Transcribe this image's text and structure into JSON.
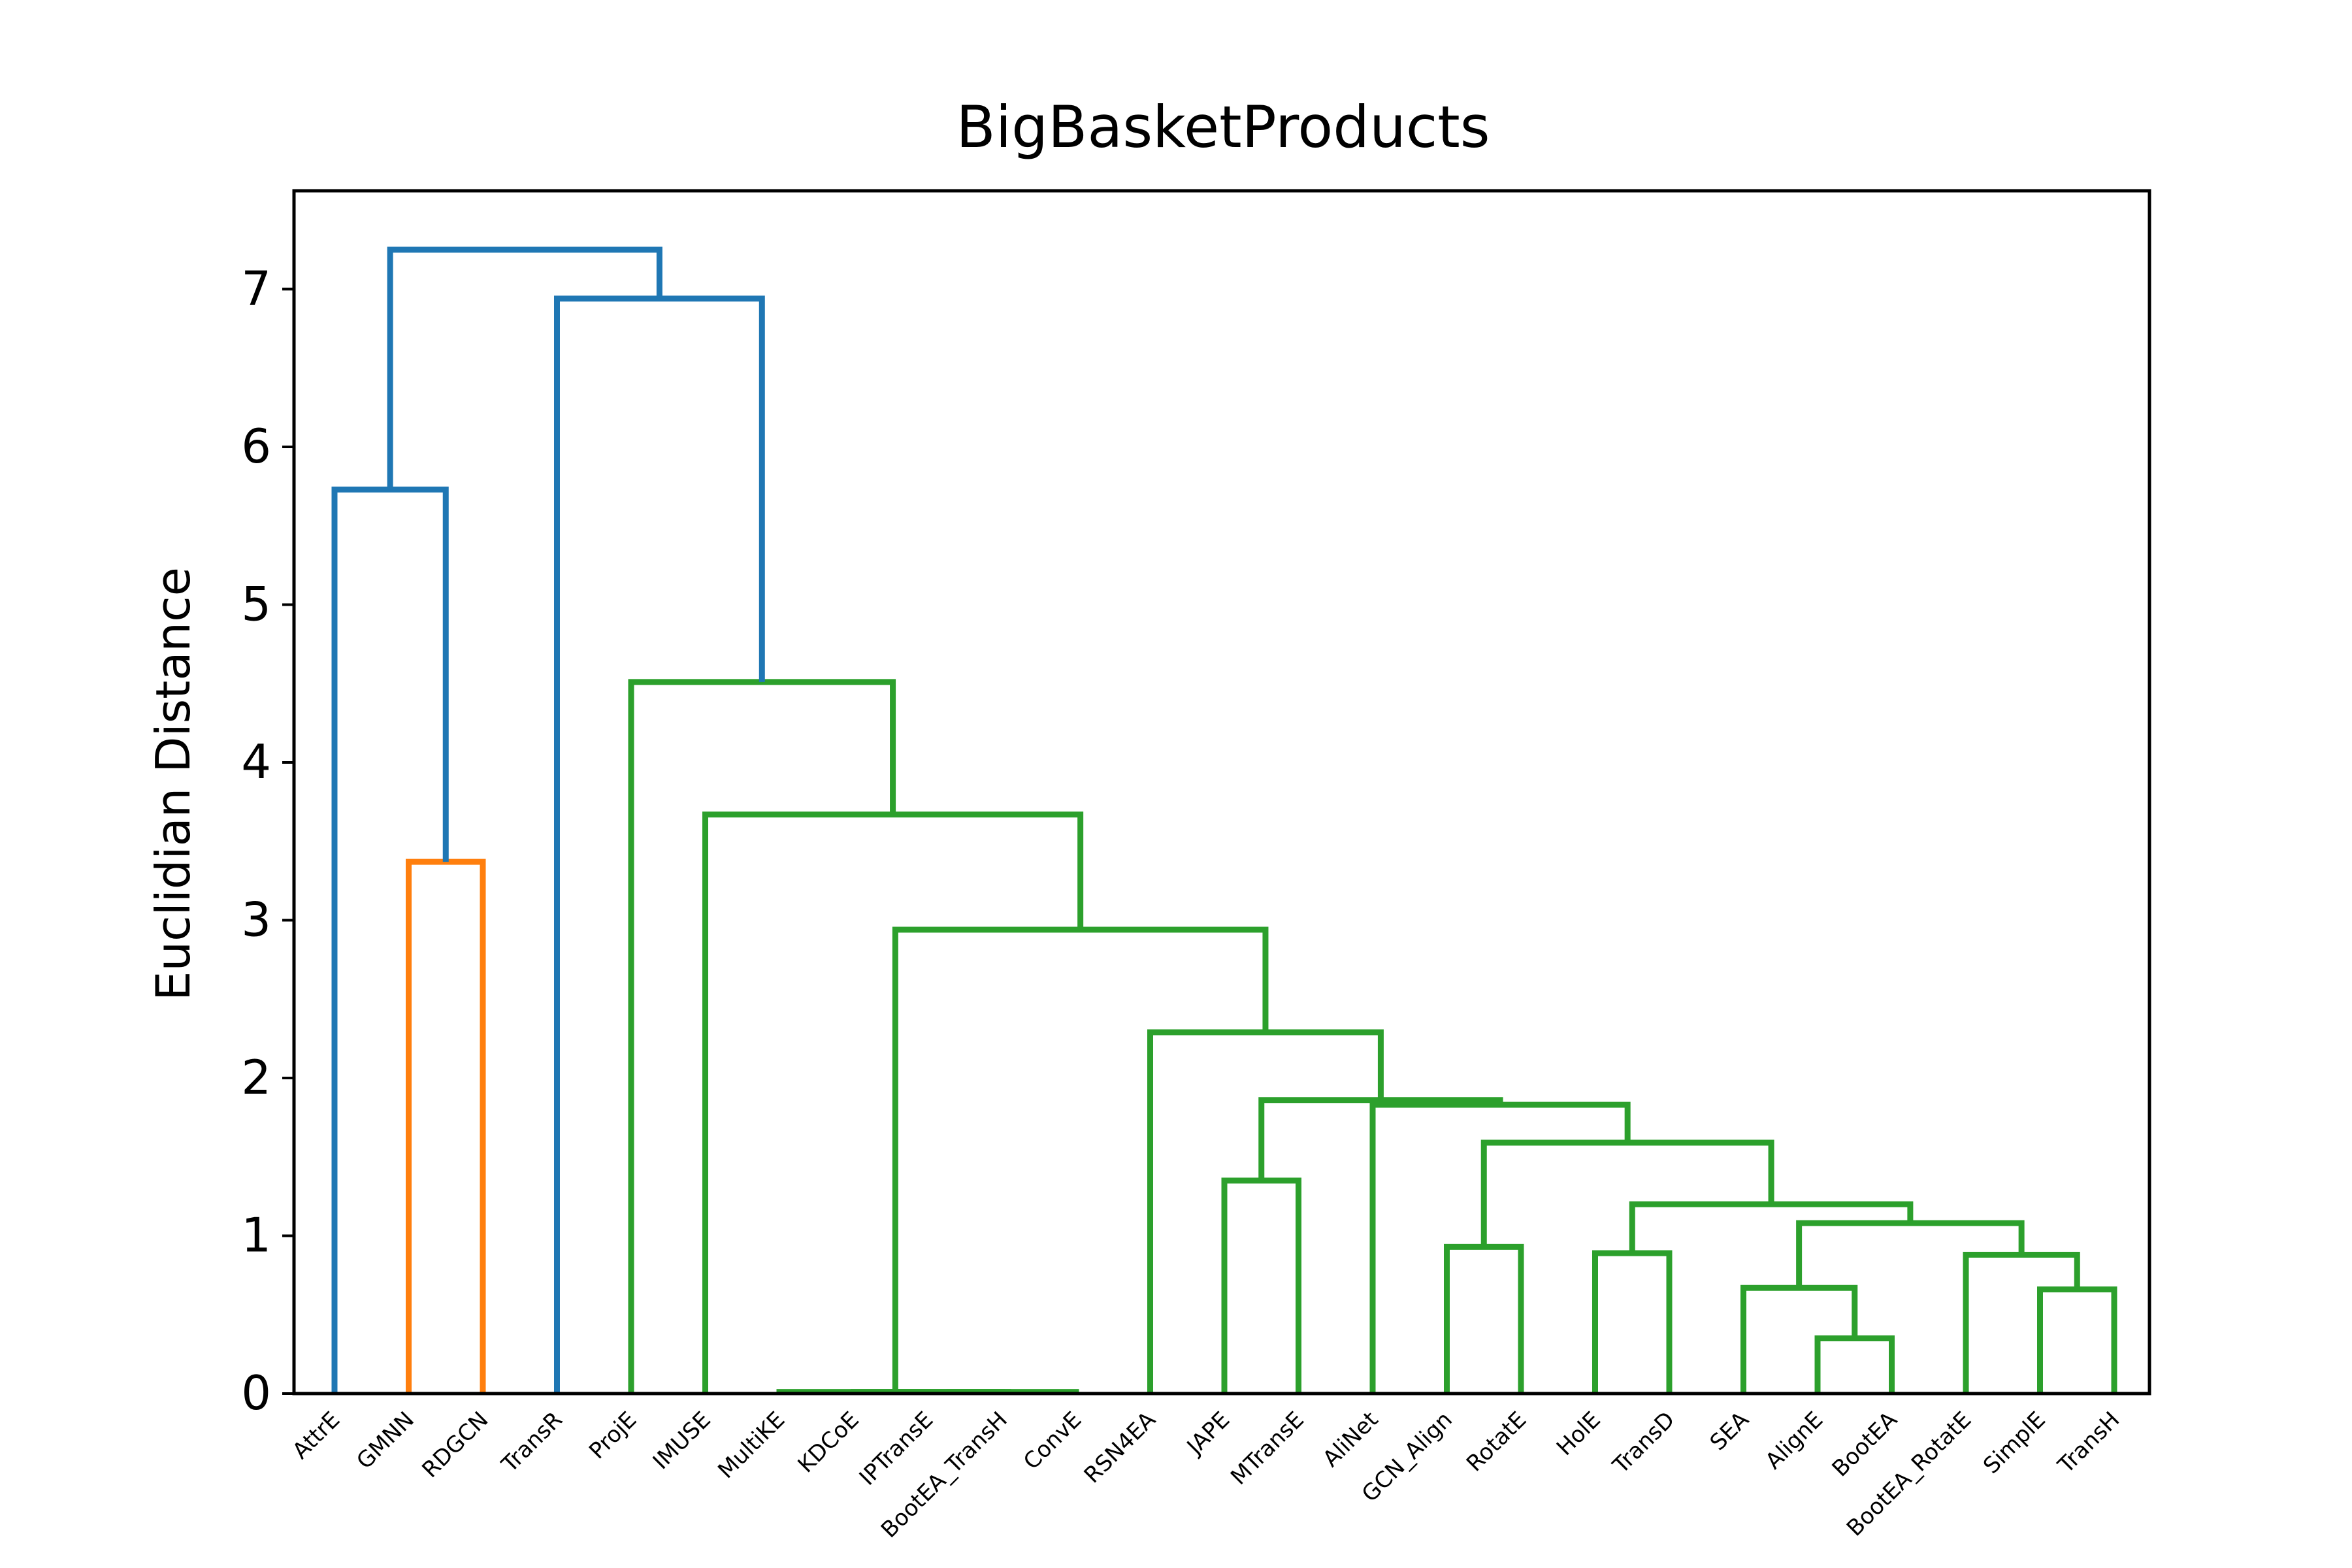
{
  "chart_data": {
    "type": "dendrogram",
    "title": "BigBasketProducts",
    "xlabel": "",
    "ylabel": "Euclidian Distance",
    "ylim": [
      0,
      7.6
    ],
    "yticks": [
      0,
      1,
      2,
      3,
      4,
      5,
      6,
      7
    ],
    "grid": false,
    "colors": {
      "blue": "#1f77b4",
      "orange": "#ff7f0e",
      "green": "#2ca02c",
      "frame": "#000000"
    },
    "leaves": [
      "AttrE",
      "GMNN",
      "RDGCN",
      "TransR",
      "ProjE",
      "IMUSE",
      "MultiKE",
      "KDCoE",
      "IPTransE",
      "BootEA_TransH",
      "ConvE",
      "RSN4EA",
      "JAPE",
      "MTransE",
      "AliNet",
      "GCN_Align",
      "RotatE",
      "HolE",
      "TransD",
      "SEA",
      "AlignE",
      "BootEA",
      "BootEA_RotatE",
      "SimplE",
      "TransH"
    ],
    "merges": [
      {
        "id": "m1",
        "left": "KDCoE",
        "right": "IPTransE",
        "height": 0.01,
        "color": "green"
      },
      {
        "id": "m2",
        "left": "m1",
        "right": "BootEA_TransH",
        "height": 0.01,
        "color": "green"
      },
      {
        "id": "m3",
        "left": "m2",
        "right": "ConvE",
        "height": 0.01,
        "color": "green"
      },
      {
        "id": "m4",
        "left": "MultiKE",
        "right": "m3",
        "height": 0.01,
        "color": "green"
      },
      {
        "id": "m5",
        "left": "AlignE",
        "right": "BootEA",
        "height": 0.35,
        "color": "green"
      },
      {
        "id": "m6",
        "left": "SimplE",
        "right": "TransH",
        "height": 0.66,
        "color": "green"
      },
      {
        "id": "m7",
        "left": "SEA",
        "right": "m5",
        "height": 0.67,
        "color": "green"
      },
      {
        "id": "m8",
        "left": "BootEA_RotatE",
        "right": "m6",
        "height": 0.88,
        "color": "green"
      },
      {
        "id": "m9",
        "left": "HolE",
        "right": "TransD",
        "height": 0.89,
        "color": "green"
      },
      {
        "id": "m10",
        "left": "GCN_Align",
        "right": "RotatE",
        "height": 0.93,
        "color": "green"
      },
      {
        "id": "m11",
        "left": "m7",
        "right": "m8",
        "height": 1.08,
        "color": "green"
      },
      {
        "id": "m12",
        "left": "m9",
        "right": "m11",
        "height": 1.2,
        "color": "green"
      },
      {
        "id": "m13",
        "left": "JAPE",
        "right": "MTransE",
        "height": 1.35,
        "color": "green"
      },
      {
        "id": "m14",
        "left": "m10",
        "right": "m12",
        "height": 1.59,
        "color": "green"
      },
      {
        "id": "m15",
        "left": "AliNet",
        "right": "m14",
        "height": 1.83,
        "color": "green"
      },
      {
        "id": "m16",
        "left": "m13",
        "right": "m15",
        "height": 1.86,
        "color": "green"
      },
      {
        "id": "m17",
        "left": "RSN4EA",
        "right": "m16",
        "height": 2.29,
        "color": "green"
      },
      {
        "id": "m18",
        "left": "m4",
        "right": "m17",
        "height": 2.94,
        "color": "green"
      },
      {
        "id": "m19",
        "left": "GMNN",
        "right": "RDGCN",
        "height": 3.37,
        "color": "orange"
      },
      {
        "id": "m20",
        "left": "IMUSE",
        "right": "m18",
        "height": 3.67,
        "color": "green"
      },
      {
        "id": "m21",
        "left": "ProjE",
        "right": "m20",
        "height": 4.51,
        "color": "green"
      },
      {
        "id": "m22",
        "left": "AttrE",
        "right": "m19",
        "height": 5.73,
        "color": "blue"
      },
      {
        "id": "m23",
        "left": "TransR",
        "right": "m21",
        "height": 6.94,
        "color": "blue"
      },
      {
        "id": "m24",
        "left": "m22",
        "right": "m23",
        "height": 7.25,
        "color": "blue"
      }
    ]
  }
}
